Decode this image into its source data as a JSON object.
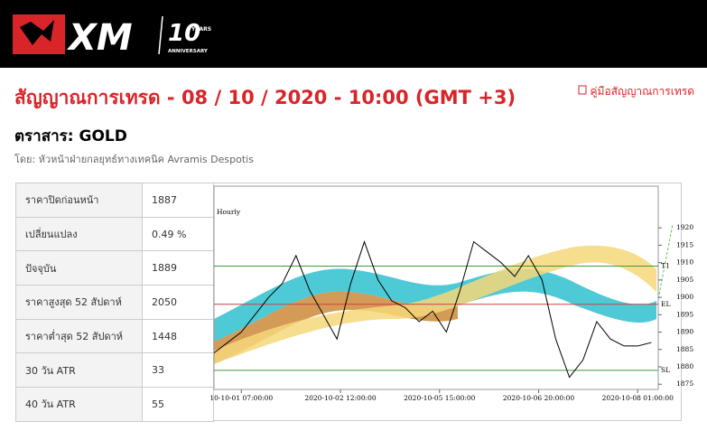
{
  "header": {
    "logo": "XM",
    "badge": "10",
    "badge_sub": "YEARS",
    "badge_sub2": "ANNIVERSARY"
  },
  "page": {
    "title": "สัญญาณการเทรด - 08 / 10 / 2020 - 10:00 (GMT +3)",
    "guide_link": "คู่มือสัญญาณการเทรด",
    "instrument": "ตราสาร: GOLD",
    "author": "โดย: หัวหน้าฝ่ายกลยุทธ์ทางเทคนิค Avramis Despotis"
  },
  "table": {
    "rows": [
      [
        "ราคาปิดก่อนหน้า",
        "1887"
      ],
      [
        "เปลี่ยนแปลง",
        "0.49 %"
      ],
      [
        "ปัจจุบัน",
        "1889"
      ],
      [
        "ราคาสูงสุด 52 สัปดาห์",
        "2050"
      ],
      [
        "ราคาต่ำสุด 52 สัปดาห์",
        "1448"
      ],
      [
        "30 วัน ATR",
        "33"
      ],
      [
        "40 วัน ATR",
        "55"
      ]
    ]
  },
  "chart": {
    "type": "line",
    "title": "Hourly",
    "x": [
      0,
      4,
      8,
      12,
      16,
      20,
      24,
      28,
      32,
      36,
      40,
      44,
      48,
      52,
      56,
      60,
      64,
      68,
      72,
      76,
      80,
      84,
      88,
      92,
      96,
      100,
      104,
      108,
      112,
      116,
      120,
      124,
      128
    ],
    "values": [
      1884,
      1887,
      1890,
      1895,
      1900,
      1904,
      1912,
      1902,
      1895,
      1888,
      1904,
      1916,
      1905,
      1899,
      1897,
      1893,
      1896,
      1890,
      1902,
      1916,
      1913,
      1910,
      1906,
      1912,
      1905,
      1888,
      1877,
      1882,
      1893,
      1888,
      1886,
      1886,
      1887
    ],
    "color": "#000000",
    "xlim": [
      0,
      130
    ],
    "xticks": [
      {
        "value": 8,
        "label": "10-10-01 07:00:00"
      },
      {
        "value": 37,
        "label": "2020-10-02 12:00:00"
      },
      {
        "value": 66,
        "label": "2020-10-05 15:00:00"
      },
      {
        "value": 95,
        "label": "2020-10-06 20:00:00"
      },
      {
        "value": 124,
        "label": "2020-10-08 01:00:00"
      }
    ],
    "ylim": [
      1873.5,
      1932
    ],
    "yticks": [
      1875,
      1880,
      1885,
      1890,
      1895,
      1900,
      1905,
      1910,
      1915,
      1920
    ],
    "levels": [
      {
        "label": "T1",
        "value": 1909,
        "color": "#3a9a3a"
      },
      {
        "label": "EL",
        "value": 1898,
        "color": "#d04040"
      },
      {
        "label": "SL",
        "value": 1879,
        "color": "#3a9a3a"
      }
    ]
  }
}
